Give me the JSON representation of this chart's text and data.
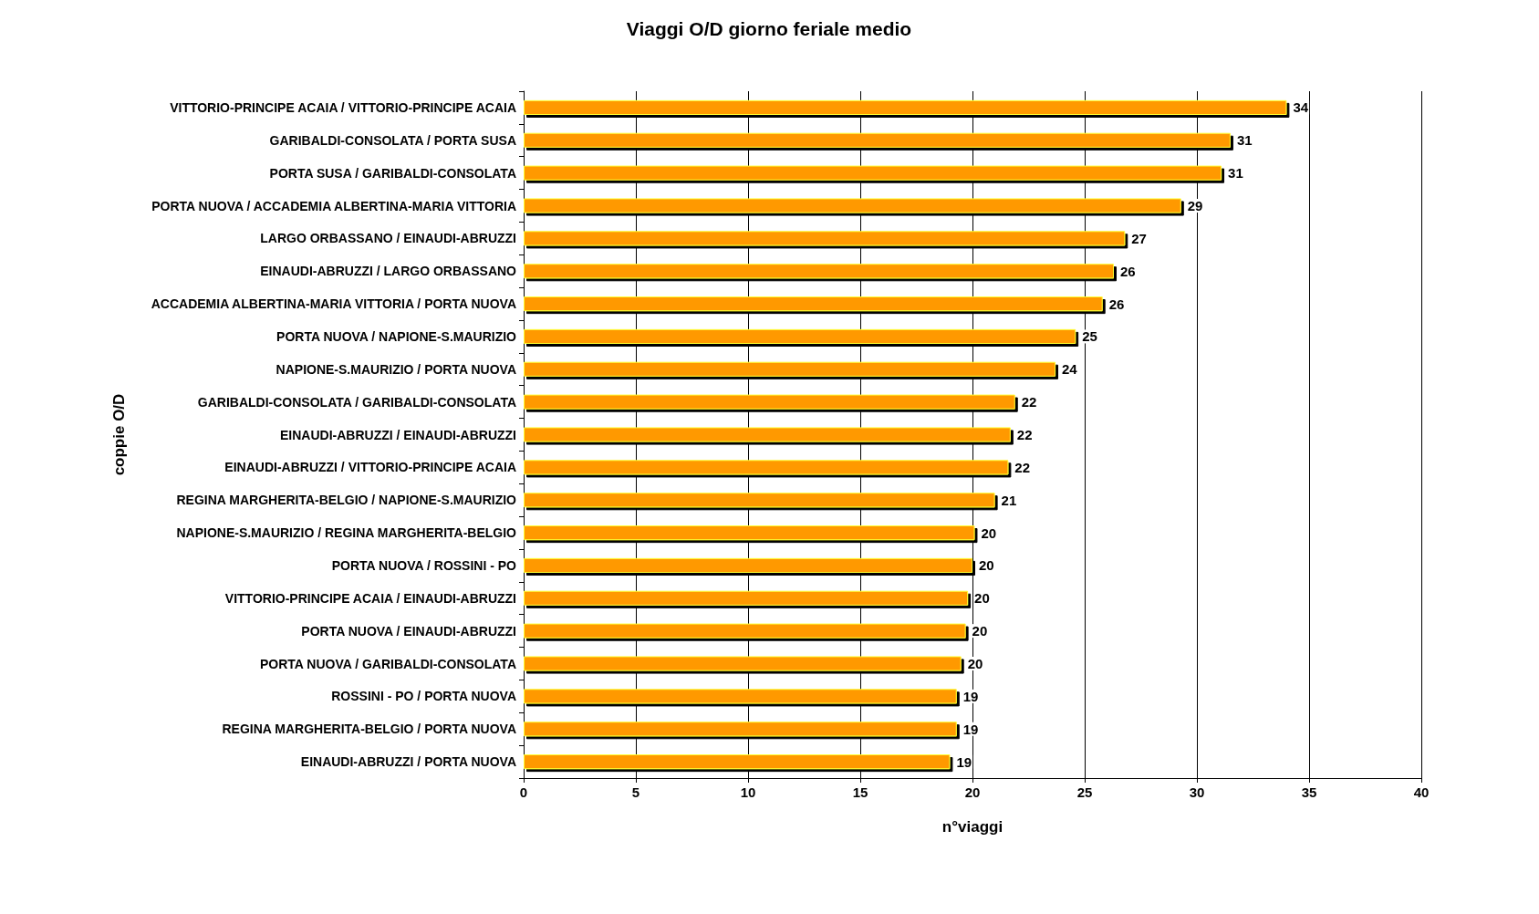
{
  "chart_data": {
    "type": "bar",
    "orientation": "horizontal",
    "title": "Viaggi O/D giorno feriale medio",
    "xlabel": "n°viaggi",
    "ylabel": "coppie O/D",
    "categories": [
      "VITTORIO-PRINCIPE ACAIA / VITTORIO-PRINCIPE ACAIA",
      "GARIBALDI-CONSOLATA / PORTA SUSA",
      "PORTA SUSA / GARIBALDI-CONSOLATA",
      "PORTA NUOVA / ACCADEMIA ALBERTINA-MARIA VITTORIA",
      "LARGO ORBASSANO / EINAUDI-ABRUZZI",
      "EINAUDI-ABRUZZI / LARGO ORBASSANO",
      "ACCADEMIA ALBERTINA-MARIA VITTORIA / PORTA NUOVA",
      "PORTA NUOVA / NAPIONE-S.MAURIZIO",
      "NAPIONE-S.MAURIZIO / PORTA NUOVA",
      "GARIBALDI-CONSOLATA / GARIBALDI-CONSOLATA",
      "EINAUDI-ABRUZZI / EINAUDI-ABRUZZI",
      "EINAUDI-ABRUZZI / VITTORIO-PRINCIPE ACAIA",
      "REGINA MARGHERITA-BELGIO / NAPIONE-S.MAURIZIO",
      "NAPIONE-S.MAURIZIO / REGINA MARGHERITA-BELGIO",
      "PORTA NUOVA / ROSSINI - PO",
      "VITTORIO-PRINCIPE ACAIA / EINAUDI-ABRUZZI",
      "PORTA NUOVA / EINAUDI-ABRUZZI",
      "PORTA NUOVA / GARIBALDI-CONSOLATA",
      "ROSSINI - PO / PORTA NUOVA",
      "REGINA MARGHERITA-BELGIO / PORTA NUOVA",
      "EINAUDI-ABRUZZI / PORTA NUOVA"
    ],
    "values": [
      34.0,
      31.5,
      31.1,
      29.3,
      26.8,
      26.3,
      25.8,
      24.6,
      23.7,
      21.9,
      21.7,
      21.6,
      21.0,
      20.1,
      20.0,
      19.8,
      19.7,
      19.5,
      19.3,
      19.3,
      19.0
    ],
    "value_labels": [
      "34",
      "31",
      "31",
      "29",
      "27",
      "26",
      "26",
      "25",
      "24",
      "22",
      "22",
      "22",
      "21",
      "20",
      "20",
      "20",
      "20",
      "20",
      "19",
      "19",
      "19"
    ],
    "color": "#ff9900",
    "xlim": [
      0,
      40
    ],
    "xticks": [
      0,
      5,
      10,
      15,
      20,
      25,
      30,
      35,
      40
    ],
    "grid": "x"
  }
}
